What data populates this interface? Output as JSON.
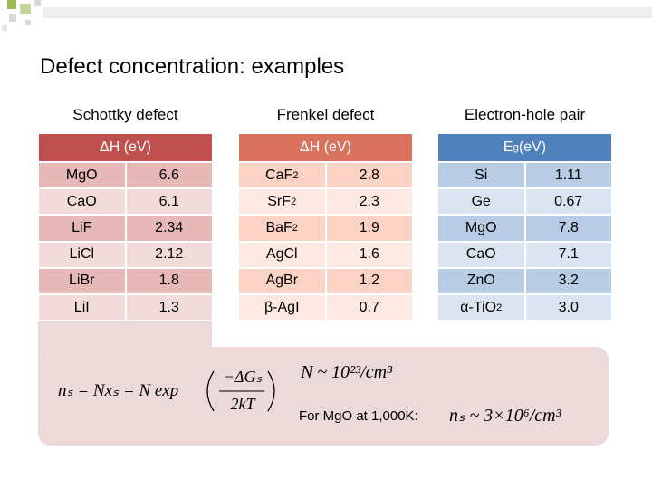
{
  "title": "Defect concentration: examples",
  "tables": [
    {
      "heading": "Schottky defect",
      "header": {
        "text": "ΔH (eV)"
      },
      "rows": [
        {
          "name": {
            "text": "MgO"
          },
          "value": "6.6"
        },
        {
          "name": {
            "text": "CaO"
          },
          "value": "6.1"
        },
        {
          "name": {
            "text": "LiF"
          },
          "value": "2.34"
        },
        {
          "name": {
            "text": "LiCl"
          },
          "value": "2.12"
        },
        {
          "name": {
            "text": "LiBr"
          },
          "value": "1.8"
        },
        {
          "name": {
            "text": "LiI"
          },
          "value": "1.3"
        }
      ]
    },
    {
      "heading": "Frenkel defect",
      "header": {
        "text": "ΔH (eV)"
      },
      "rows": [
        {
          "name": {
            "text": "CaF",
            "sub": "2"
          },
          "value": "2.8"
        },
        {
          "name": {
            "text": "SrF",
            "sub": "2"
          },
          "value": "2.3"
        },
        {
          "name": {
            "text": "BaF",
            "sub": "2"
          },
          "value": "1.9"
        },
        {
          "name": {
            "text": "AgCl"
          },
          "value": "1.6"
        },
        {
          "name": {
            "text": "AgBr"
          },
          "value": "1.2"
        },
        {
          "name": {
            "text": "β-AgI"
          },
          "value": "0.7"
        }
      ]
    },
    {
      "heading": "Electron-hole pair",
      "header": {
        "text": "E",
        "sub": "g",
        "tail": " (eV)"
      },
      "rows": [
        {
          "name": {
            "text": "Si"
          },
          "value": "1.11"
        },
        {
          "name": {
            "text": "Ge"
          },
          "value": "0.67"
        },
        {
          "name": {
            "text": "MgO"
          },
          "value": "7.8"
        },
        {
          "name": {
            "text": "CaO"
          },
          "value": "7.1"
        },
        {
          "name": {
            "text": "ZnO"
          },
          "value": "3.2"
        },
        {
          "name": {
            "text": "α-TiO",
            "sub": "2"
          },
          "value": "3.0"
        }
      ]
    }
  ],
  "formula": {
    "prefix": "nₛ = Nxₛ = N exp",
    "numerator": "−ΔGₛ",
    "denominator": "2kT"
  },
  "density": "N ~ 10²³/cm³",
  "example_label": "For MgO at 1,000K:",
  "example_value": "nₛ ~ 3×10⁶/cm³"
}
